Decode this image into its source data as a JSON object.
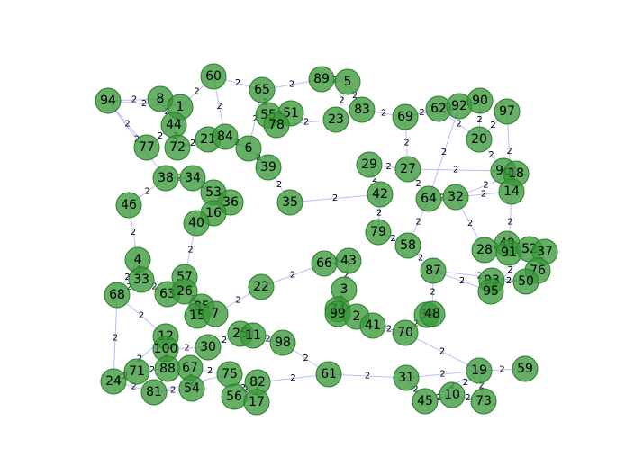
{
  "graph": {
    "nodes": [
      {
        "id": "94"
      },
      {
        "id": "8"
      },
      {
        "id": "1"
      },
      {
        "id": "60"
      },
      {
        "id": "65"
      },
      {
        "id": "89"
      },
      {
        "id": "5"
      },
      {
        "id": "83"
      },
      {
        "id": "69"
      },
      {
        "id": "62"
      },
      {
        "id": "92"
      },
      {
        "id": "90"
      },
      {
        "id": "97"
      },
      {
        "id": "44"
      },
      {
        "id": "77"
      },
      {
        "id": "72"
      },
      {
        "id": "21"
      },
      {
        "id": "84"
      },
      {
        "id": "6"
      },
      {
        "id": "55"
      },
      {
        "id": "51"
      },
      {
        "id": "78"
      },
      {
        "id": "23"
      },
      {
        "id": "20"
      },
      {
        "id": "38"
      },
      {
        "id": "34"
      },
      {
        "id": "39"
      },
      {
        "id": "29"
      },
      {
        "id": "27"
      },
      {
        "id": "96"
      },
      {
        "id": "18"
      },
      {
        "id": "14"
      },
      {
        "id": "46"
      },
      {
        "id": "53"
      },
      {
        "id": "36"
      },
      {
        "id": "16"
      },
      {
        "id": "35"
      },
      {
        "id": "42"
      },
      {
        "id": "64"
      },
      {
        "id": "32"
      },
      {
        "id": "40"
      },
      {
        "id": "79"
      },
      {
        "id": "58"
      },
      {
        "id": "28"
      },
      {
        "id": "49"
      },
      {
        "id": "91"
      },
      {
        "id": "52"
      },
      {
        "id": "37"
      },
      {
        "id": "76"
      },
      {
        "id": "4"
      },
      {
        "id": "66"
      },
      {
        "id": "43"
      },
      {
        "id": "87"
      },
      {
        "id": "93"
      },
      {
        "id": "95"
      },
      {
        "id": "50"
      },
      {
        "id": "33"
      },
      {
        "id": "57"
      },
      {
        "id": "68"
      },
      {
        "id": "63"
      },
      {
        "id": "26"
      },
      {
        "id": "22"
      },
      {
        "id": "3"
      },
      {
        "id": "85"
      },
      {
        "id": "15"
      },
      {
        "id": "7"
      },
      {
        "id": "74"
      },
      {
        "id": "99"
      },
      {
        "id": "2"
      },
      {
        "id": "41"
      },
      {
        "id": "36b"
      },
      {
        "id": "48"
      },
      {
        "id": "70"
      },
      {
        "id": "12"
      },
      {
        "id": "100"
      },
      {
        "id": "30"
      },
      {
        "id": "25"
      },
      {
        "id": "11"
      },
      {
        "id": "98"
      },
      {
        "id": "19"
      },
      {
        "id": "59"
      },
      {
        "id": "24"
      },
      {
        "id": "71"
      },
      {
        "id": "88"
      },
      {
        "id": "67"
      },
      {
        "id": "75"
      },
      {
        "id": "61"
      },
      {
        "id": "31"
      },
      {
        "id": "81"
      },
      {
        "id": "54"
      },
      {
        "id": "82"
      },
      {
        "id": "56"
      },
      {
        "id": "17"
      },
      {
        "id": "45"
      },
      {
        "id": "10"
      },
      {
        "id": "73"
      }
    ],
    "node_labels": {
      "94": "94",
      "8": "8",
      "1": "1",
      "60": "60",
      "65": "65",
      "89": "89",
      "5": "5",
      "83": "83",
      "69": "69",
      "62": "62",
      "92": "92",
      "90": "90",
      "97": "97",
      "44": "44",
      "77": "77",
      "72": "72",
      "21": "21",
      "84": "84",
      "6": "6",
      "55": "55",
      "51": "51",
      "78": "78",
      "23": "23",
      "20": "20",
      "38": "38",
      "34": "34",
      "39": "39",
      "29": "29",
      "27": "27",
      "96": "96",
      "18": "18",
      "14": "14",
      "46": "46",
      "53": "53",
      "36": "36",
      "16": "16",
      "35": "35",
      "42": "42",
      "64": "64",
      "32": "32",
      "40": "40",
      "79": "79",
      "58": "58",
      "28": "28",
      "49": "49",
      "91": "91",
      "52": "52",
      "37": "37",
      "76": "76",
      "4": "4",
      "66": "66",
      "43": "43",
      "87": "87",
      "93": "93",
      "95": "95",
      "50": "50",
      "33": "33",
      "57": "57",
      "68": "68",
      "63": "63",
      "26": "26",
      "22": "22",
      "3": "3",
      "85": "85",
      "15": "15",
      "7": "7",
      "74": "74",
      "99": "99",
      "2": "2",
      "41": "41",
      "36b": "36",
      "48": "48",
      "70": "70",
      "12": "12",
      "100": "100",
      "30": "30",
      "25": "25",
      "11": "11",
      "98": "98",
      "19": "19",
      "59": "59",
      "24": "24",
      "71": "71",
      "88": "88",
      "67": "67",
      "75": "75",
      "61": "61",
      "31": "31",
      "81": "81",
      "54": "54",
      "82": "82",
      "56": "56",
      "17": "17",
      "45": "45",
      "10": "10",
      "73": "73"
    },
    "edges": [
      [
        "94",
        "8",
        "2"
      ],
      [
        "94",
        "1",
        "2"
      ],
      [
        "94",
        "77",
        "2"
      ],
      [
        "8",
        "1",
        "2"
      ],
      [
        "60",
        "65",
        "2"
      ],
      [
        "60",
        "1",
        "2"
      ],
      [
        "65",
        "89",
        "2"
      ],
      [
        "65",
        "55",
        "2"
      ],
      [
        "89",
        "5",
        "2"
      ],
      [
        "5",
        "83",
        "2"
      ],
      [
        "5",
        "23",
        "2"
      ],
      [
        "83",
        "69",
        "2"
      ],
      [
        "69",
        "62",
        "2"
      ],
      [
        "62",
        "92",
        "2"
      ],
      [
        "92",
        "90",
        "2"
      ],
      [
        "90",
        "20",
        "2"
      ],
      [
        "97",
        "20",
        "2"
      ],
      [
        "20",
        "96",
        "2"
      ],
      [
        "96",
        "18",
        "2"
      ],
      [
        "18",
        "14",
        "2"
      ],
      [
        "14",
        "32",
        "2"
      ],
      [
        "32",
        "64",
        "2"
      ],
      [
        "64",
        "27",
        "2"
      ],
      [
        "27",
        "29",
        "2"
      ],
      [
        "29",
        "42",
        "2"
      ],
      [
        "42",
        "79",
        "2"
      ],
      [
        "79",
        "58",
        "2"
      ],
      [
        "58",
        "87",
        "2"
      ],
      [
        "87",
        "48",
        "2"
      ],
      [
        "48",
        "36b",
        "2"
      ],
      [
        "36b",
        "70",
        "2"
      ],
      [
        "70",
        "19",
        "2"
      ],
      [
        "19",
        "10",
        "2"
      ],
      [
        "19",
        "31",
        "2"
      ],
      [
        "19",
        "45",
        "2"
      ],
      [
        "19",
        "73",
        "2"
      ],
      [
        "31",
        "45",
        "2"
      ],
      [
        "31",
        "61",
        "2"
      ],
      [
        "45",
        "10",
        "2"
      ],
      [
        "61",
        "82",
        "2"
      ],
      [
        "82",
        "17",
        "2"
      ],
      [
        "82",
        "56",
        "2"
      ],
      [
        "17",
        "75",
        "2"
      ],
      [
        "75",
        "67",
        "2"
      ],
      [
        "67",
        "54",
        "2"
      ],
      [
        "54",
        "81",
        "2"
      ],
      [
        "81",
        "24",
        "2"
      ],
      [
        "24",
        "71",
        "2"
      ],
      [
        "71",
        "88",
        "2"
      ],
      [
        "88",
        "100",
        "2"
      ],
      [
        "100",
        "12",
        "2"
      ],
      [
        "12",
        "68",
        "2"
      ],
      [
        "68",
        "33",
        "2"
      ],
      [
        "33",
        "4",
        "2"
      ],
      [
        "4",
        "46",
        "2"
      ],
      [
        "46",
        "38",
        "2"
      ],
      [
        "38",
        "34",
        "2"
      ],
      [
        "34",
        "53",
        "2"
      ],
      [
        "53",
        "36",
        "2"
      ],
      [
        "36",
        "16",
        "2"
      ],
      [
        "16",
        "40",
        "2"
      ],
      [
        "40",
        "57",
        "2"
      ],
      [
        "57",
        "63",
        "2"
      ],
      [
        "63",
        "26",
        "2"
      ],
      [
        "26",
        "85",
        "2"
      ],
      [
        "85",
        "15",
        "2"
      ],
      [
        "15",
        "7",
        "2"
      ],
      [
        "7",
        "22",
        "2"
      ],
      [
        "22",
        "66",
        "2"
      ],
      [
        "66",
        "43",
        "2"
      ],
      [
        "43",
        "3",
        "2"
      ],
      [
        "3",
        "74",
        "2"
      ],
      [
        "74",
        "99",
        "2"
      ],
      [
        "99",
        "2",
        "2"
      ],
      [
        "2",
        "41",
        "2"
      ],
      [
        "41",
        "70",
        "2"
      ],
      [
        "30",
        "25",
        "2"
      ],
      [
        "25",
        "11",
        "2"
      ],
      [
        "11",
        "98",
        "2"
      ],
      [
        "98",
        "61",
        "2"
      ],
      [
        "28",
        "49",
        "2"
      ],
      [
        "49",
        "91",
        "2"
      ],
      [
        "91",
        "52",
        "2"
      ],
      [
        "52",
        "37",
        "2"
      ],
      [
        "37",
        "76",
        "2"
      ],
      [
        "76",
        "50",
        "2"
      ],
      [
        "50",
        "93",
        "2"
      ],
      [
        "93",
        "95",
        "2"
      ],
      [
        "95",
        "87",
        "2"
      ],
      [
        "44",
        "77",
        "2"
      ],
      [
        "44",
        "72",
        "2"
      ],
      [
        "72",
        "21",
        "2"
      ],
      [
        "21",
        "84",
        "2"
      ],
      [
        "84",
        "6",
        "2"
      ],
      [
        "6",
        "39",
        "2"
      ],
      [
        "39",
        "35",
        "2"
      ],
      [
        "35",
        "42",
        "2"
      ],
      [
        "51",
        "78",
        "2"
      ],
      [
        "78",
        "23",
        "2"
      ],
      [
        "55",
        "51",
        "2"
      ],
      [
        "1",
        "44",
        "2"
      ],
      [
        "9",
        "1",
        "2"
      ],
      [
        "59",
        "19",
        "2"
      ],
      [
        "73",
        "10",
        "2"
      ],
      [
        "56",
        "17",
        "2"
      ],
      [
        "32",
        "28",
        "2"
      ],
      [
        "64",
        "58",
        "2"
      ],
      [
        "27",
        "96",
        "2"
      ],
      [
        "69",
        "27",
        "2"
      ],
      [
        "62",
        "20",
        "2"
      ],
      [
        "24",
        "12",
        "2"
      ],
      [
        "81",
        "75",
        "2"
      ],
      [
        "100",
        "30",
        "2"
      ],
      [
        "68",
        "24",
        "2"
      ],
      [
        "33",
        "63",
        "2"
      ],
      [
        "4",
        "68",
        "2"
      ],
      [
        "94",
        "38",
        "2"
      ],
      [
        "8",
        "44",
        "2"
      ],
      [
        "60",
        "84",
        "2"
      ],
      [
        "65",
        "6",
        "2"
      ],
      [
        "37",
        "28",
        "2"
      ],
      [
        "52",
        "95",
        "2"
      ],
      [
        "50",
        "87",
        "2"
      ],
      [
        "14",
        "91",
        "2"
      ],
      [
        "18",
        "32",
        "2"
      ],
      [
        "90",
        "69",
        "2"
      ],
      [
        "97",
        "14",
        "2"
      ],
      [
        "92",
        "64",
        "2"
      ]
    ]
  }
}
